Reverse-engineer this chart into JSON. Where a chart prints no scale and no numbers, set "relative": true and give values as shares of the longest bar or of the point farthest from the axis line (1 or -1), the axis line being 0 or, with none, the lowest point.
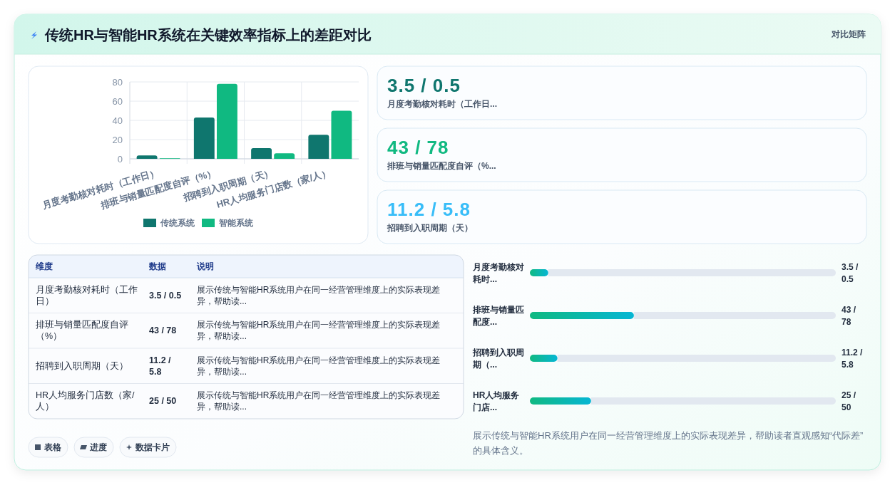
{
  "chart_data": [
    {
      "type": "other",
      "title": "传统HR与智能HR系统在关键效率指标上的差距对比",
      "annotations": [
        "对比矩阵"
      ]
    },
    {
      "type": "bar",
      "categories": [
        "月度考勤核对耗时（工作日）",
        "排班与销量匹配度自评（%）",
        "招聘到入职周期（天）",
        "HR人均服务门店数（家/人）"
      ],
      "series": [
        {
          "name": "传统系统",
          "color": "#0f766e",
          "values": [
            3.5,
            43,
            11.2,
            25
          ]
        },
        {
          "name": "智能系统",
          "color": "#10b981",
          "values": [
            0.5,
            78,
            5.8,
            50
          ]
        }
      ],
      "ylim": [
        0,
        80
      ],
      "yticks": [
        0,
        20,
        40,
        60,
        80
      ],
      "grid": true,
      "legend": "bottom"
    },
    {
      "type": "other",
      "annotations": [
        "3.5 / 0.5",
        "月度考勤核对耗时（工作日...",
        "43 / 78",
        "排班与销量匹配度自评（%...",
        "11.2 / 5.8",
        "招聘到入职周期（天）"
      ]
    },
    {
      "type": "other",
      "categories": [
        "维度",
        "数据",
        "说明"
      ],
      "annotations": [
        "月度考勤核对耗时（工作日）",
        "3.5 / 0.5",
        "展示传统与智能HR系统用户在同一经营管理维度上的实际表现差异，帮助读...",
        "排班与销量匹配度自评（%）",
        "43 / 78",
        "展示传统与智能HR系统用户在同一经营管理维度上的实际表现差异，帮助读...",
        "招聘到入职周期（天）",
        "11.2 / 5.8",
        "展示传统与智能HR系统用户在同一经营管理维度上的实际表现差异，帮助读...",
        "HR人均服务门店数（家/人）",
        "25 / 50",
        "展示传统与智能HR系统用户在同一经营管理维度上的实际表现差异，帮助读..."
      ]
    },
    {
      "type": "other",
      "annotations": [
        "表格",
        "进度",
        "数据卡片"
      ]
    },
    {
      "type": "bar",
      "orientation": "horizontal",
      "stacked": true,
      "relative": true,
      "categories": [
        "月度考勤核对耗时...",
        "排班与销量匹配度...",
        "招聘到入职周期（...",
        "HR人均服务门店..."
      ],
      "series": [
        {
          "color": "#10b981",
          "values": [
            0.06,
            0.34,
            0.09,
            0.2
          ]
        },
        {
          "color": "#e2e8f0",
          "values": [
            0.94,
            0.66,
            0.91,
            0.8
          ]
        }
      ],
      "annotations": [
        "3.5 / 0.5",
        "43 / 78",
        "11.2 / 5.8",
        "25 / 50"
      ]
    },
    {
      "type": "other",
      "annotations": [
        "展示传统与智能HR系统用户在同一经营管理维度上的实际表现差异，帮助读者直观感知“代际差”的具体含义。"
      ]
    }
  ]
}
